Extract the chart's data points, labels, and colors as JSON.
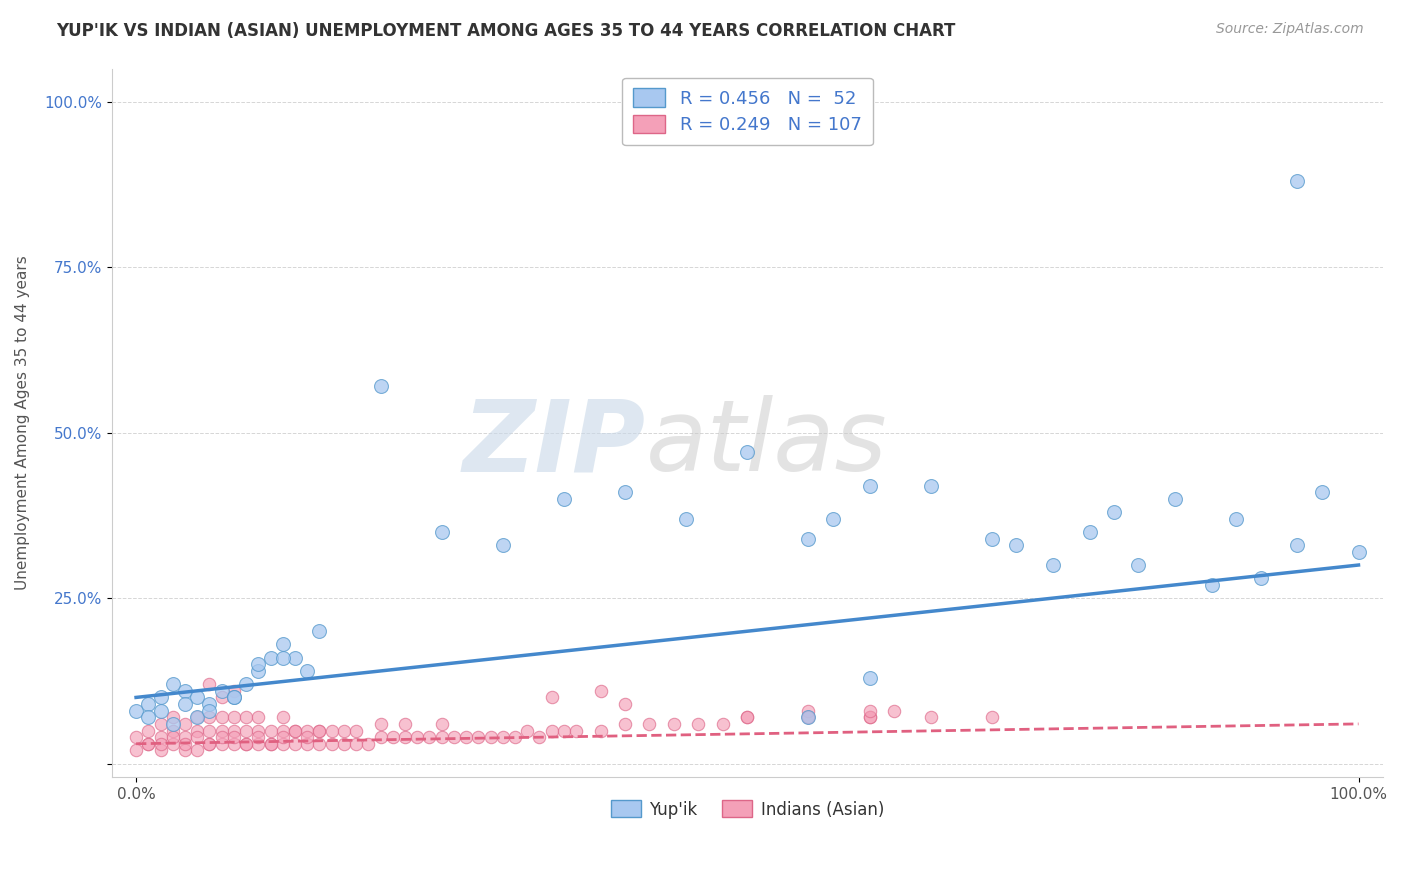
{
  "title": "YUP'IK VS INDIAN (ASIAN) UNEMPLOYMENT AMONG AGES 35 TO 44 YEARS CORRELATION CHART",
  "source": "Source: ZipAtlas.com",
  "ylabel": "Unemployment Among Ages 35 to 44 years",
  "watermark_zip": "ZIP",
  "watermark_atlas": "atlas",
  "xlim": [
    -0.02,
    1.02
  ],
  "ylim": [
    -0.02,
    1.05
  ],
  "xticks": [
    0.0,
    1.0
  ],
  "xticklabels": [
    "0.0%",
    "100.0%"
  ],
  "yticks": [
    0.0,
    0.25,
    0.5,
    0.75,
    1.0
  ],
  "yticklabels": [
    "",
    "25.0%",
    "50.0%",
    "75.0%",
    "100.0%"
  ],
  "legend_color1": "#a8c8f0",
  "legend_color2": "#f4a0b8",
  "trend_color1": "#4488cc",
  "trend_color2": "#e06080",
  "dot_color1": "#a8c8f0",
  "dot_color2": "#f4a0b8",
  "dot_edge_color1": "#5599cc",
  "dot_edge_color2": "#dd6688",
  "background": "#ffffff",
  "grid_color": "#cccccc",
  "title_color": "#333333",
  "source_color": "#999999",
  "watermark_color_zip": "#c8d8e8",
  "watermark_color_atlas": "#c8c8c8",
  "series1_label": "Yup'ik",
  "series2_label": "Indians (Asian)",
  "yupik_x": [
    0.0,
    0.01,
    0.02,
    0.03,
    0.04,
    0.05,
    0.06,
    0.07,
    0.08,
    0.09,
    0.1,
    0.11,
    0.12,
    0.13,
    0.14,
    0.15,
    0.2,
    0.25,
    0.3,
    0.35,
    0.4,
    0.45,
    0.5,
    0.55,
    0.57,
    0.6,
    0.65,
    0.7,
    0.72,
    0.75,
    0.78,
    0.8,
    0.82,
    0.85,
    0.88,
    0.9,
    0.92,
    0.95,
    0.97,
    1.0,
    0.01,
    0.02,
    0.03,
    0.04,
    0.05,
    0.06,
    0.08,
    0.1,
    0.12,
    0.55,
    0.6,
    0.95
  ],
  "yupik_y": [
    0.08,
    0.09,
    0.1,
    0.12,
    0.11,
    0.1,
    0.09,
    0.11,
    0.1,
    0.12,
    0.14,
    0.16,
    0.18,
    0.16,
    0.14,
    0.2,
    0.57,
    0.35,
    0.33,
    0.4,
    0.41,
    0.37,
    0.47,
    0.34,
    0.37,
    0.42,
    0.42,
    0.34,
    0.33,
    0.3,
    0.35,
    0.38,
    0.3,
    0.4,
    0.27,
    0.37,
    0.28,
    0.33,
    0.41,
    0.32,
    0.07,
    0.08,
    0.06,
    0.09,
    0.07,
    0.08,
    0.1,
    0.15,
    0.16,
    0.07,
    0.13,
    0.88
  ],
  "indian_x": [
    0.0,
    0.0,
    0.01,
    0.01,
    0.02,
    0.02,
    0.02,
    0.03,
    0.03,
    0.03,
    0.04,
    0.04,
    0.04,
    0.05,
    0.05,
    0.05,
    0.06,
    0.06,
    0.06,
    0.07,
    0.07,
    0.07,
    0.08,
    0.08,
    0.08,
    0.09,
    0.09,
    0.09,
    0.1,
    0.1,
    0.1,
    0.11,
    0.11,
    0.12,
    0.12,
    0.12,
    0.13,
    0.13,
    0.14,
    0.14,
    0.15,
    0.15,
    0.16,
    0.16,
    0.17,
    0.17,
    0.18,
    0.18,
    0.19,
    0.2,
    0.2,
    0.21,
    0.22,
    0.22,
    0.23,
    0.24,
    0.25,
    0.25,
    0.26,
    0.27,
    0.28,
    0.29,
    0.3,
    0.31,
    0.32,
    0.33,
    0.34,
    0.35,
    0.36,
    0.38,
    0.4,
    0.42,
    0.44,
    0.46,
    0.48,
    0.5,
    0.55,
    0.6,
    0.65,
    0.7,
    0.01,
    0.02,
    0.03,
    0.04,
    0.05,
    0.06,
    0.07,
    0.08,
    0.09,
    0.1,
    0.11,
    0.12,
    0.13,
    0.14,
    0.15,
    0.06,
    0.07,
    0.08,
    0.34,
    0.38,
    0.4,
    0.55,
    0.6,
    0.62,
    0.5,
    0.55,
    0.6
  ],
  "indian_y": [
    0.02,
    0.04,
    0.03,
    0.05,
    0.02,
    0.04,
    0.06,
    0.03,
    0.05,
    0.07,
    0.02,
    0.04,
    0.06,
    0.02,
    0.05,
    0.07,
    0.03,
    0.05,
    0.07,
    0.03,
    0.05,
    0.07,
    0.03,
    0.05,
    0.07,
    0.03,
    0.05,
    0.07,
    0.03,
    0.05,
    0.07,
    0.03,
    0.05,
    0.03,
    0.05,
    0.07,
    0.03,
    0.05,
    0.03,
    0.05,
    0.03,
    0.05,
    0.03,
    0.05,
    0.03,
    0.05,
    0.03,
    0.05,
    0.03,
    0.04,
    0.06,
    0.04,
    0.04,
    0.06,
    0.04,
    0.04,
    0.04,
    0.06,
    0.04,
    0.04,
    0.04,
    0.04,
    0.04,
    0.04,
    0.05,
    0.04,
    0.05,
    0.05,
    0.05,
    0.05,
    0.06,
    0.06,
    0.06,
    0.06,
    0.06,
    0.07,
    0.07,
    0.07,
    0.07,
    0.07,
    0.03,
    0.03,
    0.04,
    0.03,
    0.04,
    0.03,
    0.04,
    0.04,
    0.03,
    0.04,
    0.03,
    0.04,
    0.05,
    0.04,
    0.05,
    0.12,
    0.1,
    0.11,
    0.1,
    0.11,
    0.09,
    0.08,
    0.07,
    0.08,
    0.07,
    0.07,
    0.08
  ],
  "trend1_x_start": 0.0,
  "trend1_x_end": 1.0,
  "trend1_y_start": 0.1,
  "trend1_y_end": 0.3,
  "trend2_x_start": 0.0,
  "trend2_x_end": 1.0,
  "trend2_y_start": 0.03,
  "trend2_y_end": 0.06,
  "figsize": [
    14.06,
    8.92
  ],
  "dpi": 100
}
